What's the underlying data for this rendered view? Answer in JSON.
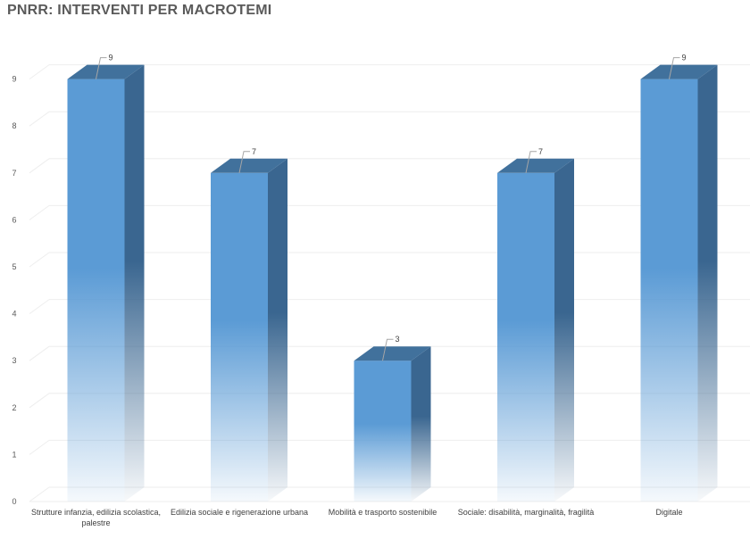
{
  "page": {
    "title": "PNRR: INTERVENTI PER MACROTEMI"
  },
  "chart_data": {
    "type": "bar",
    "style": "3d-column",
    "title": "PNRR: INTERVENTI PER MACROTEMI",
    "categories": [
      [
        "Strutture infanzia, edilizia scolastica,",
        "palestre"
      ],
      [
        "Edilizia sociale e rigenerazione urbana"
      ],
      [
        "Mobilità e trasporto sostenibile"
      ],
      [
        "Sociale: disabilità, marginalità, fragilità"
      ],
      [
        "Digitale"
      ]
    ],
    "values": [
      9,
      7,
      3,
      7,
      9
    ],
    "data_labels": [
      "9",
      "7",
      "3",
      "7",
      "9"
    ],
    "yticks": [
      "0",
      "1",
      "2",
      "3",
      "4",
      "5",
      "6",
      "7",
      "8",
      "9"
    ],
    "ylim": [
      0,
      9
    ],
    "xlabel": "",
    "ylabel": "",
    "grid": true,
    "legend": "none",
    "colors": {
      "front": "#5b9bd5",
      "side": "#3a6690",
      "top": "#41719c",
      "gridline": "#eeeeee",
      "leader": "#a6a6a6"
    }
  }
}
